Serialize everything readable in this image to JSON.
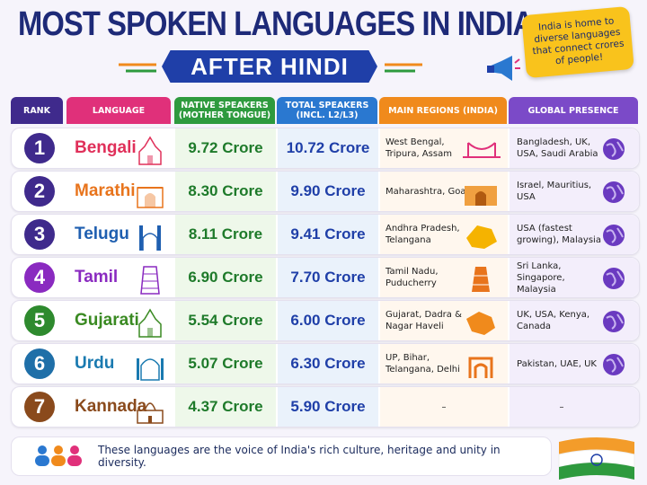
{
  "title": "MOST SPOKEN LANGUAGES IN INDIA",
  "subtitle": "AFTER HINDI",
  "note": "India is home to diverse languages that connect crores of people!",
  "headers": {
    "rank": "RANK",
    "language": "LANGUAGE",
    "native": "NATIVE SPEAKERS (MOTHER TONGUE)",
    "total": "TOTAL SPEAKERS (INCL. L2/L3)",
    "regions": "MAIN REGIONS (INDIA)",
    "global": "GLOBAL PRESENCE"
  },
  "header_colors": {
    "rank": "#3f2a8c",
    "language": "#e0307a",
    "native": "#2e9a3e",
    "total": "#2a78d0",
    "regions": "#f08a1c",
    "global": "#7b4ac8"
  },
  "rows": [
    {
      "rank": "1",
      "language": "Bengali",
      "native": "9.72 Crore",
      "total": "10.72 Crore",
      "regions": "West Bengal, Tripura, Assam",
      "global": "Bangladesh, UK, USA, Saudi Arabia",
      "color": "#e0305a",
      "rank_color": "#3f2a8c",
      "icon": "temple-icon"
    },
    {
      "rank": "2",
      "language": "Marathi",
      "native": "8.30 Crore",
      "total": "9.90 Crore",
      "regions": "Maharashtra, Goa",
      "global": "Israel, Mauritius, USA",
      "color": "#e8741c",
      "rank_color": "#3f2a8c",
      "icon": "gateway-icon"
    },
    {
      "rank": "3",
      "language": "Telugu",
      "native": "8.11 Crore",
      "total": "9.41 Crore",
      "regions": "Andhra Pradesh, Telangana",
      "global": "USA (fastest growing), Malaysia",
      "color": "#1f5fb0",
      "rank_color": "#3f2a8c",
      "icon": "charminar-icon"
    },
    {
      "rank": "4",
      "language": "Tamil",
      "native": "6.90 Crore",
      "total": "7.70 Crore",
      "regions": "Tamil Nadu, Puducherry",
      "global": "Sri Lanka, Singapore, Malaysia",
      "color": "#8a2ac0",
      "rank_color": "#8a2ac0",
      "icon": "gopuram-icon"
    },
    {
      "rank": "5",
      "language": "Gujarati",
      "native": "5.54 Crore",
      "total": "6.00 Crore",
      "regions": "Gujarat, Dadra & Nagar Haveli",
      "global": "UK, USA, Kenya, Canada",
      "color": "#3a8a22",
      "rank_color": "#2e8a2e",
      "icon": "temple-icon"
    },
    {
      "rank": "6",
      "language": "Urdu",
      "native": "5.07 Crore",
      "total": "6.30 Crore",
      "regions": "UP, Bihar, Telangana, Delhi",
      "global": "Pakistan, UAE, UK",
      "color": "#1a7ab0",
      "rank_color": "#1f6fa8",
      "icon": "mosque-icon"
    },
    {
      "rank": "7",
      "language": "Kannada",
      "native": "4.37 Crore",
      "total": "5.90 Crore",
      "regions": "–",
      "global": "–",
      "color": "#8a4a1c",
      "rank_color": "#8a4a1c",
      "icon": "palace-icon"
    }
  ],
  "footer": "These languages are the voice of India's rich culture, heritage and unity in diversity."
}
